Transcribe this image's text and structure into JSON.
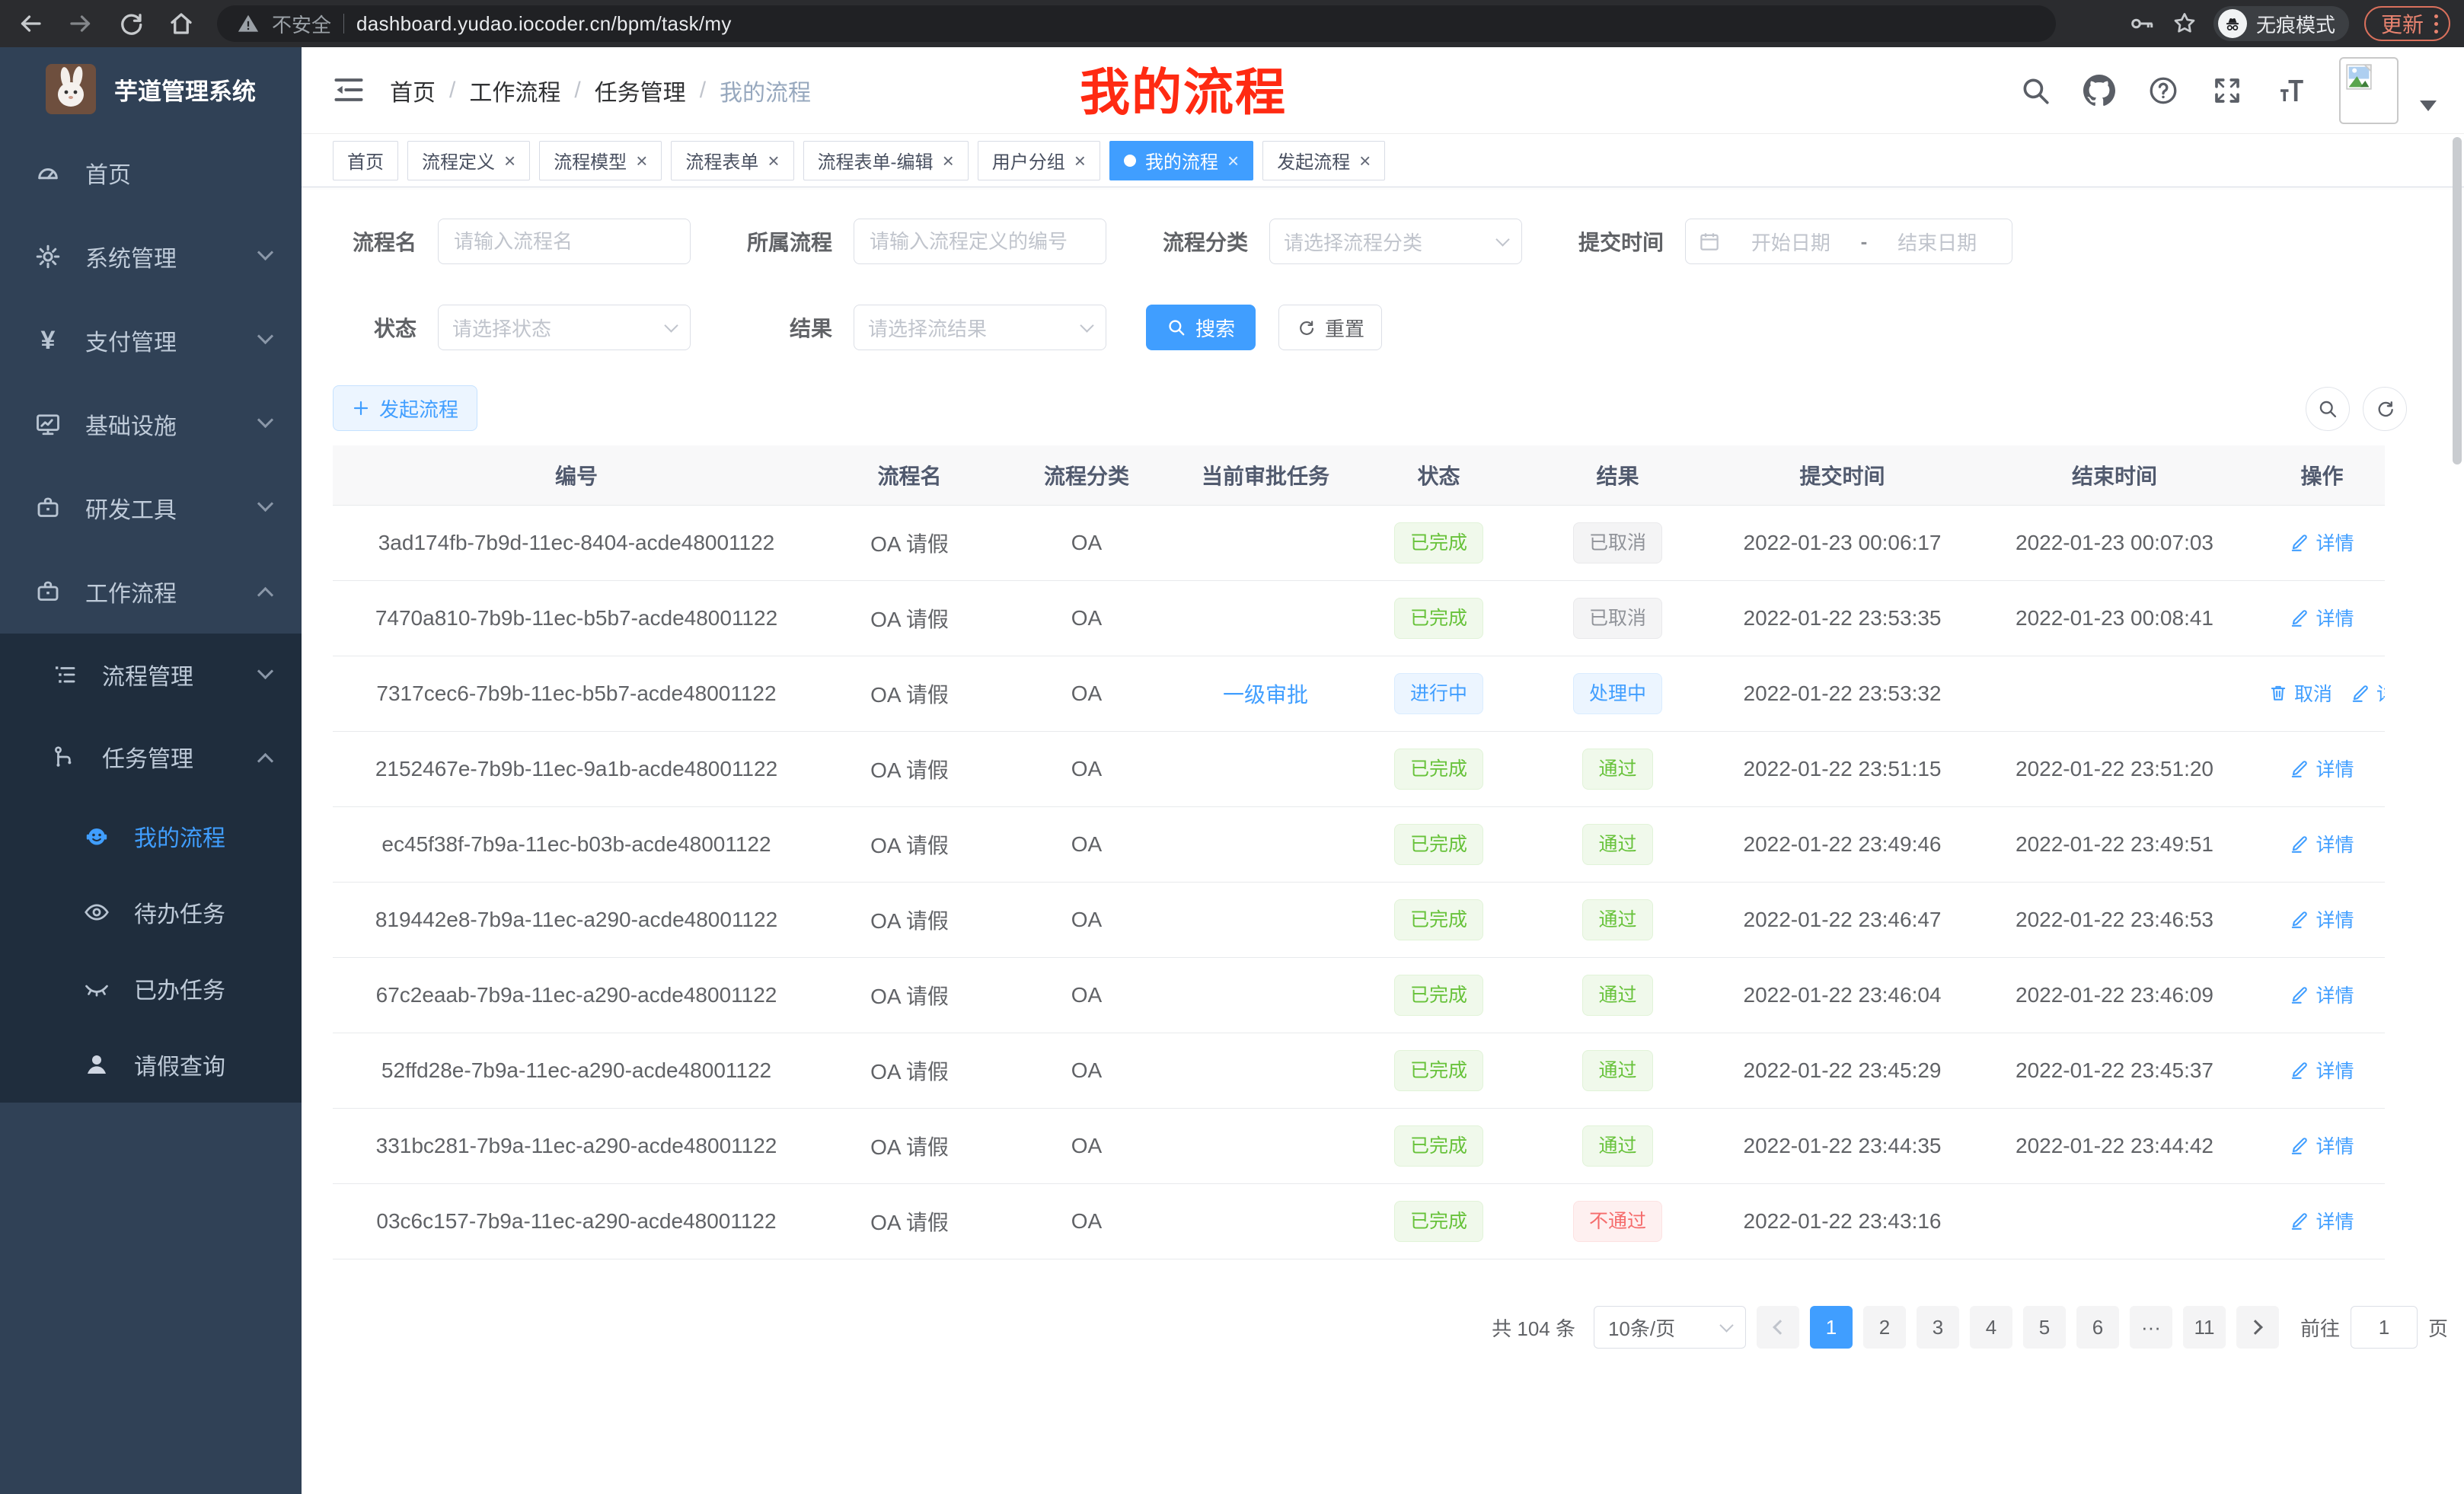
{
  "browser": {
    "security_label": "不安全",
    "url": "dashboard.yudao.iocoder.cn/bpm/task/my",
    "incognito_label": "无痕模式",
    "update_label": "更新"
  },
  "icons": {
    "close": "×",
    "pages_ellipsis": "···",
    "yen": "¥"
  },
  "sidebar": {
    "app_title": "芋道管理系统",
    "items": [
      {
        "label": "首页"
      },
      {
        "label": "系统管理"
      },
      {
        "label": "支付管理"
      },
      {
        "label": "基础设施"
      },
      {
        "label": "研发工具"
      },
      {
        "label": "工作流程"
      }
    ],
    "submenu": {
      "process_mgmt": "流程管理",
      "task_mgmt": "任务管理",
      "children": [
        {
          "label": "我的流程"
        },
        {
          "label": "待办任务"
        },
        {
          "label": "已办任务"
        },
        {
          "label": "请假查询"
        }
      ]
    }
  },
  "navbar": {
    "breadcrumb": [
      "首页",
      "工作流程",
      "任务管理",
      "我的流程"
    ],
    "separator": "/",
    "annotation": "我的流程"
  },
  "tabs": [
    {
      "label": "首页",
      "closable": false,
      "active": false
    },
    {
      "label": "流程定义",
      "closable": true,
      "active": false
    },
    {
      "label": "流程模型",
      "closable": true,
      "active": false
    },
    {
      "label": "流程表单",
      "closable": true,
      "active": false
    },
    {
      "label": "流程表单-编辑",
      "closable": true,
      "active": false
    },
    {
      "label": "用户分组",
      "closable": true,
      "active": false
    },
    {
      "label": "我的流程",
      "closable": true,
      "active": true
    },
    {
      "label": "发起流程",
      "closable": true,
      "active": false
    }
  ],
  "filters": {
    "name_label": "流程名",
    "name_placeholder": "请输入流程名",
    "owner_label": "所属流程",
    "owner_placeholder": "请输入流程定义的编号",
    "category_label": "流程分类",
    "category_placeholder": "请选择流程分类",
    "time_label": "提交时间",
    "date_start_placeholder": "开始日期",
    "date_separator": "-",
    "date_end_placeholder": "结束日期",
    "status_label": "状态",
    "status_placeholder": "请选择状态",
    "result_label": "结果",
    "result_placeholder": "请选择流结果",
    "search_label": "搜索",
    "reset_label": "重置"
  },
  "toolbar": {
    "create_label": "发起流程"
  },
  "table": {
    "headers": [
      "编号",
      "流程名",
      "流程分类",
      "当前审批任务",
      "状态",
      "结果",
      "提交时间",
      "结束时间",
      "操作"
    ],
    "action_cancel": "取消",
    "action_detail": "详情",
    "rows": [
      {
        "id": "3ad174fb-7b9d-11ec-8404-acde48001122",
        "name": "OA 请假",
        "category": "OA",
        "task": "",
        "status": "已完成",
        "status_type": "success",
        "result": "已取消",
        "result_type": "info",
        "submit": "2022-01-23 00:06:17",
        "end": "2022-01-23 00:07:03",
        "cancelable": false
      },
      {
        "id": "7470a810-7b9b-11ec-b5b7-acde48001122",
        "name": "OA 请假",
        "category": "OA",
        "task": "",
        "status": "已完成",
        "status_type": "success",
        "result": "已取消",
        "result_type": "info",
        "submit": "2022-01-22 23:53:35",
        "end": "2022-01-23 00:08:41",
        "cancelable": false
      },
      {
        "id": "7317cec6-7b9b-11ec-b5b7-acde48001122",
        "name": "OA 请假",
        "category": "OA",
        "task": "一级审批",
        "status": "进行中",
        "status_type": "primary",
        "result": "处理中",
        "result_type": "primary",
        "submit": "2022-01-22 23:53:32",
        "end": "",
        "cancelable": true
      },
      {
        "id": "2152467e-7b9b-11ec-9a1b-acde48001122",
        "name": "OA 请假",
        "category": "OA",
        "task": "",
        "status": "已完成",
        "status_type": "success",
        "result": "通过",
        "result_type": "success",
        "submit": "2022-01-22 23:51:15",
        "end": "2022-01-22 23:51:20",
        "cancelable": false
      },
      {
        "id": "ec45f38f-7b9a-11ec-b03b-acde48001122",
        "name": "OA 请假",
        "category": "OA",
        "task": "",
        "status": "已完成",
        "status_type": "success",
        "result": "通过",
        "result_type": "success",
        "submit": "2022-01-22 23:49:46",
        "end": "2022-01-22 23:49:51",
        "cancelable": false
      },
      {
        "id": "819442e8-7b9a-11ec-a290-acde48001122",
        "name": "OA 请假",
        "category": "OA",
        "task": "",
        "status": "已完成",
        "status_type": "success",
        "result": "通过",
        "result_type": "success",
        "submit": "2022-01-22 23:46:47",
        "end": "2022-01-22 23:46:53",
        "cancelable": false
      },
      {
        "id": "67c2eaab-7b9a-11ec-a290-acde48001122",
        "name": "OA 请假",
        "category": "OA",
        "task": "",
        "status": "已完成",
        "status_type": "success",
        "result": "通过",
        "result_type": "success",
        "submit": "2022-01-22 23:46:04",
        "end": "2022-01-22 23:46:09",
        "cancelable": false
      },
      {
        "id": "52ffd28e-7b9a-11ec-a290-acde48001122",
        "name": "OA 请假",
        "category": "OA",
        "task": "",
        "status": "已完成",
        "status_type": "success",
        "result": "通过",
        "result_type": "success",
        "submit": "2022-01-22 23:45:29",
        "end": "2022-01-22 23:45:37",
        "cancelable": false
      },
      {
        "id": "331bc281-7b9a-11ec-a290-acde48001122",
        "name": "OA 请假",
        "category": "OA",
        "task": "",
        "status": "已完成",
        "status_type": "success",
        "result": "通过",
        "result_type": "success",
        "submit": "2022-01-22 23:44:35",
        "end": "2022-01-22 23:44:42",
        "cancelable": false
      },
      {
        "id": "03c6c157-7b9a-11ec-a290-acde48001122",
        "name": "OA 请假",
        "category": "OA",
        "task": "",
        "status": "已完成",
        "status_type": "success",
        "result": "不通过",
        "result_type": "danger",
        "submit": "2022-01-22 23:43:16",
        "end": "",
        "cancelable": false
      }
    ]
  },
  "pagination": {
    "total_label": "共 104 条",
    "page_size": "10条/页",
    "pages": [
      "1",
      "2",
      "3",
      "4",
      "5",
      "6",
      "···",
      "11"
    ],
    "active_page": "1",
    "goto_label": "前往",
    "goto_value": "1",
    "page_suffix": "页"
  },
  "colors": {
    "accent": "#409eff",
    "success": "#67c23a",
    "danger": "#f56c6c",
    "info": "#909399",
    "annotation_red": "#ff2a12",
    "sidebar_bg": "#304156",
    "submenu_bg": "#1f2d3d"
  }
}
